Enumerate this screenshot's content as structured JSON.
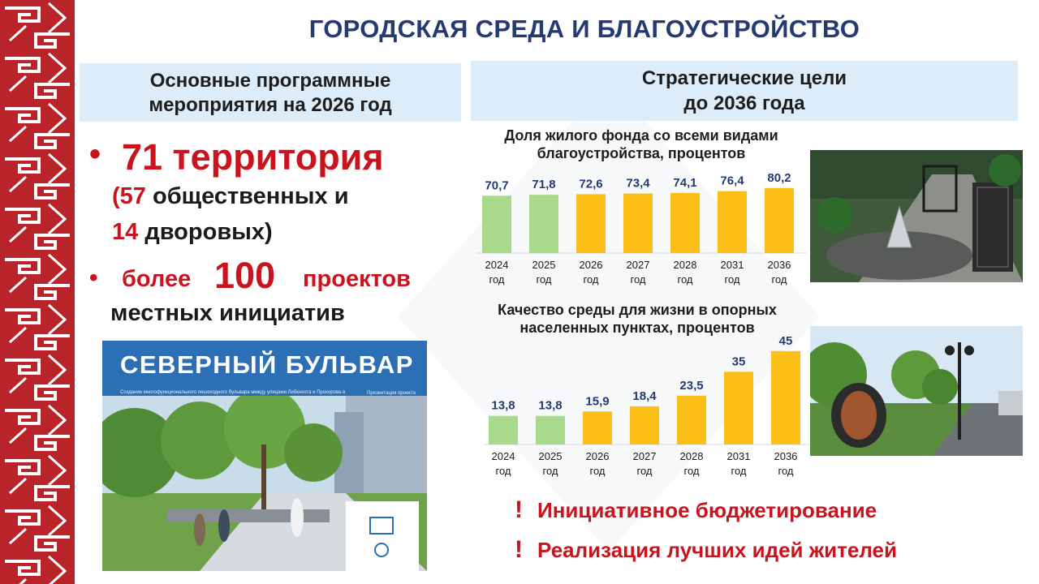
{
  "title": "ГОРОДСКАЯ СРЕДА И БЛАГОУСТРОЙСТВО",
  "left_block": {
    "heading_line1": "Основные программные",
    "heading_line2": "мероприятия на 2026 год",
    "bullet": "•",
    "item1_value": "71 территория",
    "item1_paren_open": "(",
    "item1_public_count": "57",
    "item1_public_text": " общественных и",
    "item1_yard_count": "14",
    "item1_yard_text": " дворовых)",
    "item2_prefix": "более",
    "item2_value": "100",
    "item2_suffix": "проектов",
    "item2_line2": "местных инициатив"
  },
  "promo": {
    "title": "СЕВЕРНЫЙ БУЛЬВАР",
    "subtitle": "Создание многофункционального пешеходного бульвара между улицами Либкнехта и Прохорова в районе Северный г. Волжск",
    "note": "Презентация проекта"
  },
  "right_block": {
    "heading_line1": "Стратегические цели",
    "heading_line2": "до 2036 года"
  },
  "chart_data": [
    {
      "type": "bar",
      "title": "Доля жилого фонда со всеми видами благоустройства, процентов",
      "title_line1": "Доля жилого фонда со всеми видами",
      "title_line2": "благоустройства, процентов",
      "categories": [
        "2024 год",
        "2025 год",
        "2026 год",
        "2027 год",
        "2028 год",
        "2031 год",
        "2036 год"
      ],
      "category_years": [
        "2024",
        "2025",
        "2026",
        "2027",
        "2028",
        "2031",
        "2036"
      ],
      "category_unit": "год",
      "values": [
        70.7,
        71.8,
        72.6,
        73.4,
        74.1,
        76.4,
        80.2
      ],
      "value_labels": [
        "70,7",
        "71,8",
        "72,6",
        "73,4",
        "74,1",
        "76,4",
        "80,2"
      ],
      "bar_colors": [
        "#a9d98a",
        "#a9d98a",
        "#fbbf17",
        "#fbbf17",
        "#fbbf17",
        "#fbbf17",
        "#fbbf17"
      ],
      "ylim": [
        0,
        100
      ],
      "xlabel": "",
      "ylabel": ""
    },
    {
      "type": "bar",
      "title": "Качество среды для жизни в опорных населенных пунктах, процентов",
      "title_line1": "Качество среды для жизни в опорных",
      "title_line2": "населенных пунктах, процентов",
      "categories": [
        "2024 год",
        "2025 год",
        "2026 год",
        "2027 год",
        "2028 год",
        "2031 год",
        "2036 год"
      ],
      "category_years": [
        "2024",
        "2025",
        "2026",
        "2027",
        "2028",
        "2031",
        "2036"
      ],
      "category_unit": "год",
      "values": [
        13.8,
        13.8,
        15.9,
        18.4,
        23.5,
        35,
        45
      ],
      "value_labels": [
        "13,8",
        "13,8",
        "15,9",
        "18,4",
        "23,5",
        "35",
        "45"
      ],
      "bar_colors": [
        "#a9d98a",
        "#a9d98a",
        "#fbbf17",
        "#fbbf17",
        "#fbbf17",
        "#fbbf17",
        "#fbbf17"
      ],
      "ylim": [
        0,
        50
      ],
      "xlabel": "",
      "ylabel": ""
    }
  ],
  "alerts": [
    {
      "mark": "!",
      "text": "Инициативное бюджетирование"
    },
    {
      "mark": "!",
      "text": "Реализация лучших идей жителей"
    }
  ],
  "colors": {
    "title_blue": "#243a73",
    "accent_red": "#c8141e",
    "ornament_red": "#b8242a",
    "header_bg": "#dcecf8",
    "bar_green": "#a9d98a",
    "bar_yellow": "#fbbf17",
    "promo_blue": "#2d6fb4"
  }
}
